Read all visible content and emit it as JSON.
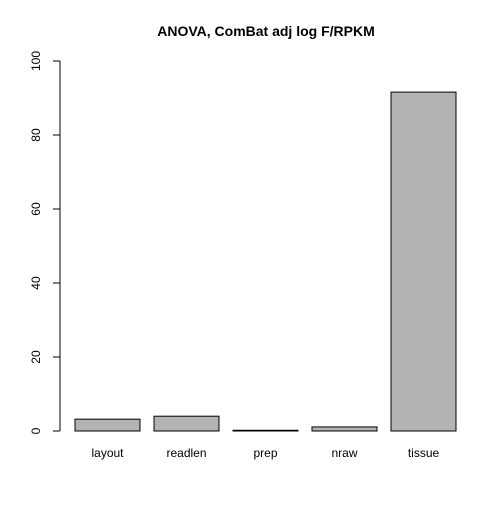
{
  "chart_data": {
    "type": "bar",
    "title": "ANOVA, ComBat adj log F/RPKM",
    "xlabel": "",
    "ylabel": "",
    "categories": [
      "layout",
      "readlen",
      "prep",
      "nraw",
      "tissue"
    ],
    "values": [
      3.2,
      4.0,
      0.2,
      1.1,
      91.6
    ],
    "ylim": [
      0,
      100
    ],
    "yticks": [
      0,
      20,
      40,
      60,
      80,
      100
    ],
    "grid": false,
    "bar_color": "#b3b3b3",
    "bar_border_color": "#000000"
  }
}
